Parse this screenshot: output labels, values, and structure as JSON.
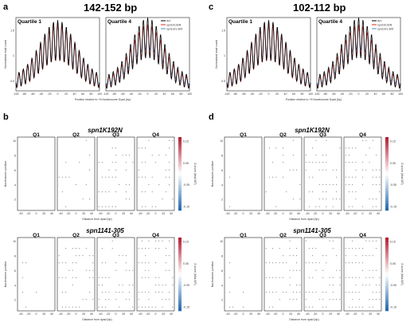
{
  "panels": {
    "a": {
      "letter": "a",
      "title": "142-152 bp"
    },
    "c": {
      "letter": "c",
      "title": "102-112 bp"
    },
    "b": {
      "letter": "b"
    },
    "d": {
      "letter": "d"
    }
  },
  "profile": {
    "left_title": "Quartile 1",
    "right_title": "Quartile 4",
    "ylabel": "Normalized read count",
    "xlabel": "Position relative to +5 Nucleosome Dyad (bp)",
    "xticks": [
      "-100",
      "-80",
      "-60",
      "-40",
      "-20",
      "0",
      "20",
      "40",
      "60",
      "80",
      "100"
    ],
    "xticks_short": [
      "-100",
      "-80",
      "-60",
      "-40",
      "-20",
      "0",
      "20",
      "40",
      "60",
      "80",
      "100"
    ],
    "yticks_a": [
      "0.5",
      "1",
      "1.5"
    ],
    "yticks_c": [
      "0.5",
      "1",
      "1.5"
    ],
    "legend": [
      {
        "label": "WT",
        "color": "#000000"
      },
      {
        "label": "spn1K192N",
        "color": "#e8251e"
      },
      {
        "label": "spn1141-305",
        "color": "#4a8fd4"
      }
    ]
  },
  "heatmaps": {
    "genotype_top": "spn1K192N",
    "genotype_bottom": "spn1141-305",
    "quartiles": [
      "Q1",
      "Q2",
      "Q3",
      "Q4"
    ],
    "ylabel": "Nucleosome position",
    "xlabel": "Distance from dyad (bp)",
    "xticks": [
      "-40",
      "-20",
      "0",
      "20",
      "40"
    ],
    "yticks": [
      "2",
      "4",
      "6",
      "8",
      "10"
    ],
    "colorbar_label": "Z-score (Mut-WT)",
    "colorbar_ticks": [
      "0.15",
      "0.05",
      "-0.05",
      "-0.15"
    ]
  },
  "colors": {
    "wt": "#000000",
    "k192n": "#e8251e",
    "d141": "#4a8fd4",
    "neg": "#2166ac",
    "pos": "#b2182b"
  }
}
